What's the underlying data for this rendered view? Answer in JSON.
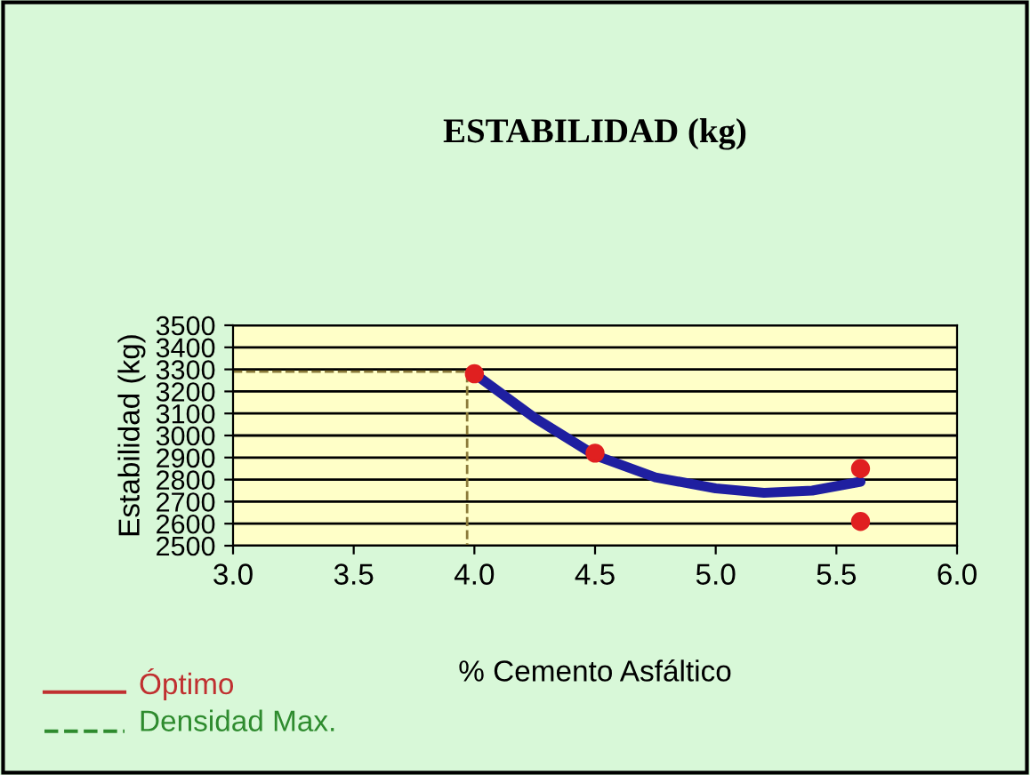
{
  "chart_data": {
    "type": "line",
    "title": "ESTABILIDAD (kg)",
    "xlabel": "% Cemento Asfáltico",
    "ylabel": "Estabilidad (kg)",
    "xlim": [
      3.0,
      6.0
    ],
    "xticks": [
      {
        "value": 3.0,
        "label": "3.0"
      },
      {
        "value": 3.5,
        "label": "3.5"
      },
      {
        "value": 4.0,
        "label": "4.0"
      },
      {
        "value": 4.5,
        "label": "4.5"
      },
      {
        "value": 5.0,
        "label": "5.0"
      },
      {
        "value": 5.5,
        "label": "5.5"
      },
      {
        "value": 6.0,
        "label": "6.0"
      }
    ],
    "ylim": [
      2500,
      3500
    ],
    "yticks": [
      2500,
      2600,
      2700,
      2800,
      2900,
      3000,
      3100,
      3200,
      3300,
      3400,
      3500
    ],
    "grid": "y",
    "series": [
      {
        "color": "#1f1fa0",
        "x": [
          4.0,
          4.25,
          4.5,
          4.75,
          5.0,
          5.2,
          5.4,
          5.6
        ],
        "values": [
          3280,
          3080,
          2910,
          2810,
          2760,
          2740,
          2750,
          2790
        ],
        "marker": "none",
        "line_style": "solid"
      },
      {
        "type": "scatter",
        "color": "#e02020",
        "x": [
          4.0,
          4.5,
          5.6,
          5.6
        ],
        "values": [
          3280,
          2920,
          2850,
          2610
        ],
        "marker": "circle"
      },
      {
        "color": "#8a7a3a",
        "x": [
          3.0,
          3.97,
          3.97
        ],
        "values": [
          3290,
          3290,
          2500
        ],
        "marker": "none",
        "line_style": "dashed"
      }
    ],
    "annotations": [
      "Óptimo",
      "Densidad Max."
    ]
  }
}
